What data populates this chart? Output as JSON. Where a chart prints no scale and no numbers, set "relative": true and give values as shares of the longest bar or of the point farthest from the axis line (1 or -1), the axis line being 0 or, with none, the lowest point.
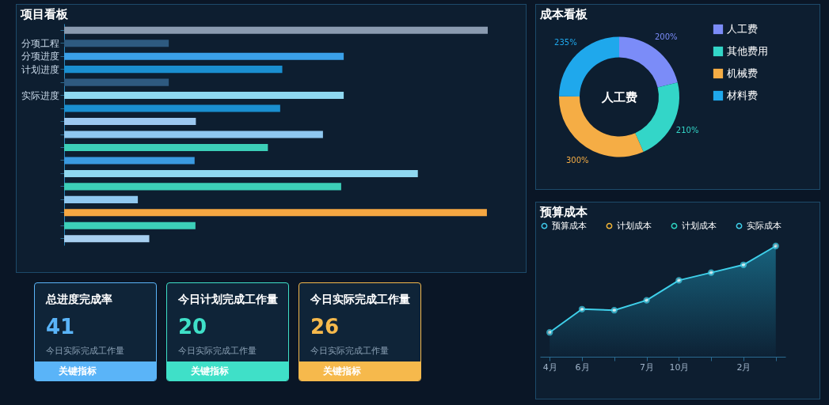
{
  "chart_data": [
    {
      "type": "bar",
      "title": "项目看板",
      "orientation": "horizontal",
      "relative": true,
      "categories": [
        null,
        "分项工程",
        "分项进度",
        "计划进度",
        null,
        "实际进度",
        null,
        null,
        null,
        null,
        null,
        null,
        null,
        null,
        null,
        null,
        null
      ],
      "values": [
        1.0,
        0.247,
        0.66,
        0.515,
        0.247,
        0.66,
        0.51,
        0.311,
        0.611,
        0.481,
        0.308,
        0.835,
        0.654,
        0.174,
        0.998,
        0.31,
        0.201
      ],
      "colors": [
        "#8a9bb0",
        "#2e5a80",
        "#3aa0e8",
        "#1a8fd0",
        "#2e5a80",
        "#8fd8f0",
        "#1a8fd0",
        "#9cc8f0",
        "#8fc8f0",
        "#3ccfb8",
        "#3a9ae0",
        "#8fd8f0",
        "#3ccfb8",
        "#8fc8f0",
        "#f5a742",
        "#3ccfb8",
        "#a8d0f0"
      ]
    },
    {
      "type": "donut",
      "title": "成本看板",
      "categories": [
        "人工费",
        "其他费用",
        "机械费",
        "材料费"
      ],
      "values": [
        200,
        210,
        300,
        235
      ],
      "value_labels": [
        "200%",
        "210%",
        "300%",
        "235%"
      ],
      "colors": [
        "#7b8cf8",
        "#33d6c8",
        "#f5ad45",
        "#1fa8ec"
      ],
      "legend": "right",
      "annotations": [
        "人工费"
      ]
    },
    {
      "type": "area",
      "title": "预算成本",
      "relative": true,
      "legend": "top",
      "marker": "circle",
      "categories": [
        "4月",
        "6月",
        null,
        "7月",
        "10月",
        null,
        "2月",
        null
      ],
      "series": [
        {
          "name": "预算成本",
          "color": "#3fc8e8",
          "values": [
            null,
            null,
            null,
            null,
            null,
            null,
            null,
            null
          ]
        },
        {
          "name": "计划成本",
          "color": "#f0b437",
          "values": [
            null,
            null,
            null,
            null,
            null,
            null,
            null,
            null
          ]
        },
        {
          "name": "计划成本",
          "color": "#2ed3c0",
          "values": [
            null,
            null,
            null,
            null,
            null,
            null,
            null,
            null
          ]
        },
        {
          "name": "实际成本",
          "color": "#3fd0ea",
          "values": [
            0.22,
            0.43,
            0.42,
            0.51,
            0.69,
            0.76,
            0.83,
            1.0
          ]
        }
      ]
    },
    {
      "type": "other",
      "title": "总进度完成率",
      "color": "#5ab4f8",
      "annotations": [
        "41",
        "今日实际完成工作量",
        "关键指标"
      ]
    },
    {
      "type": "other",
      "title": "今日计划完成工作量",
      "color": "#3fe0c8",
      "annotations": [
        "20",
        "今日实际完成工作量",
        "关键指标"
      ]
    },
    {
      "type": "other",
      "title": "今日实际完成工作量",
      "color": "#f6b94c",
      "annotations": [
        "26",
        "今日实际完成工作量",
        "关键指标"
      ]
    }
  ]
}
